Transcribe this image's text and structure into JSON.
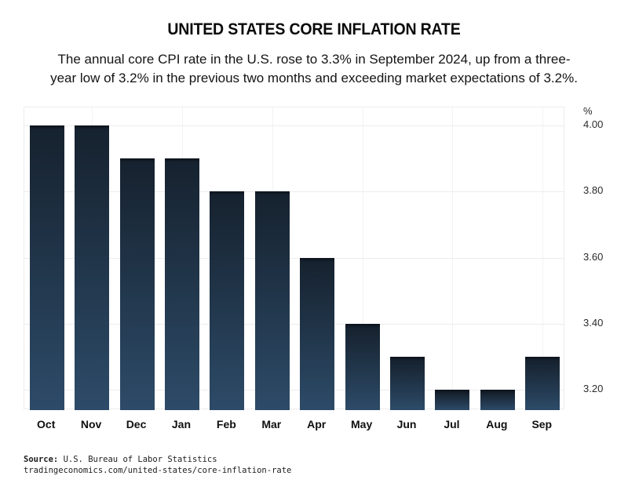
{
  "chart_data": {
    "type": "bar",
    "title": "UNITED STATES CORE INFLATION RATE",
    "subtitle_line1": "The annual core CPI rate in the U.S. rose to 3.3% in September 2024, up from a three-",
    "subtitle_line2": "year low of 3.2% in the previous two months and exceeding market expectations of 3.2%.",
    "categories": [
      "Oct",
      "Nov",
      "Dec",
      "Jan",
      "Feb",
      "Mar",
      "Apr",
      "May",
      "Jun",
      "Jul",
      "Aug",
      "Sep"
    ],
    "values": [
      4.0,
      4.0,
      3.9,
      3.9,
      3.8,
      3.8,
      3.6,
      3.4,
      3.3,
      3.2,
      3.2,
      3.3
    ],
    "unit_label": "%",
    "xlabel": "",
    "ylabel": "%",
    "yticks": [
      4.0,
      3.8,
      3.6,
      3.4,
      3.2
    ],
    "ytick_labels": [
      "4.00",
      "3.80",
      "3.60",
      "3.40",
      "3.20"
    ],
    "ylim": [
      3.138,
      4.055
    ],
    "grid": true,
    "legend_position": "none",
    "bar_color_cap": "#0c131b",
    "bar_color_top": "#16222f",
    "bar_color_bottom": "#2d4b68",
    "grid_color_h": "#ececec",
    "grid_color_v": "#f3f3f3"
  },
  "footer": {
    "source_label": "Source:",
    "source_text": "U.S. Bureau of Labor Statistics",
    "source_url": "tradingeconomics.com/united-states/core-inflation-rate"
  }
}
